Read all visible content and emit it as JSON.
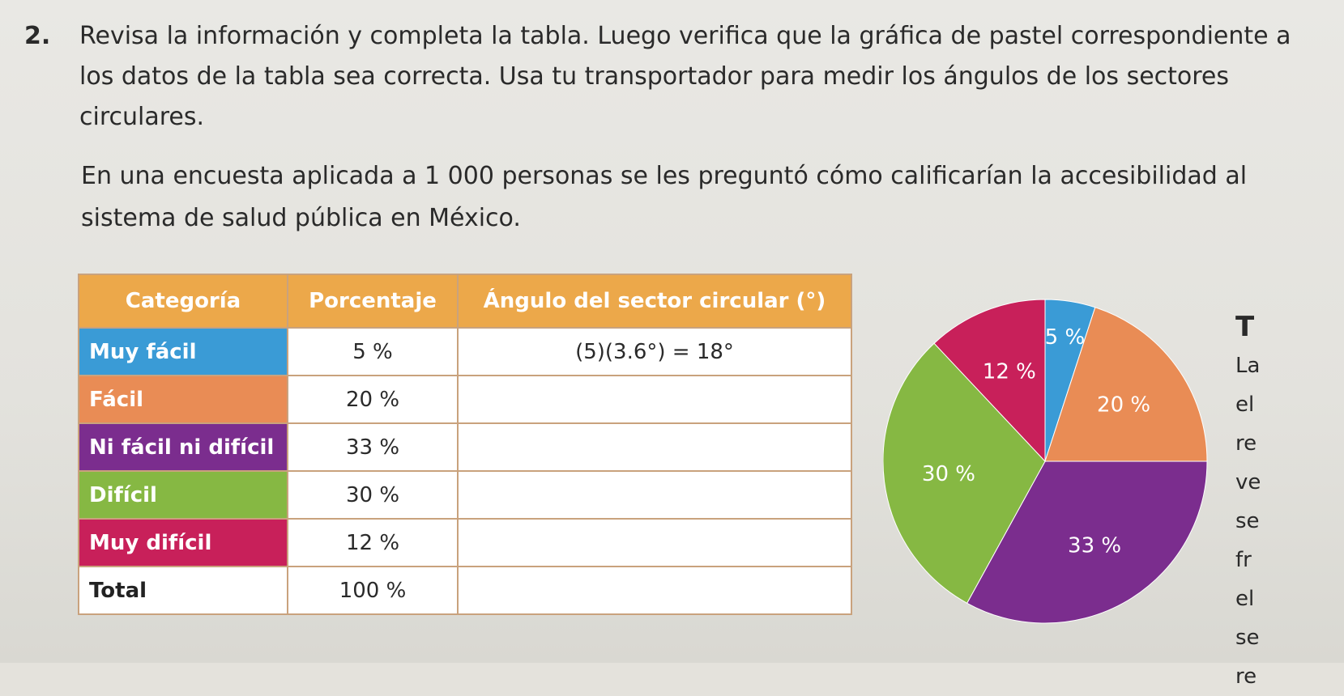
{
  "problem": {
    "number": "2.",
    "text": "Revisa la información y completa la tabla. Luego verifica que la gráfica de pastel correspondiente a los datos de la tabla sea correcta. Usa tu transportador para medir los ángulos de los sectores circulares."
  },
  "intro": "En una encuesta aplicada a 1 000 personas se les preguntó cómo calificarían la accesibilidad al sistema de salud pública en México.",
  "table": {
    "headers": [
      "Categoría",
      "Porcentaje",
      "Ángulo del sector circular (°)"
    ],
    "rows": [
      {
        "category": "Muy fácil",
        "percent": "5 %",
        "angle": "(5)(3.6°) = 18°",
        "color": "#3a9bd6"
      },
      {
        "category": "Fácil",
        "percent": "20 %",
        "angle": "",
        "color": "#e98c55"
      },
      {
        "category": "Ni fácil ni difícil",
        "percent": "33 %",
        "angle": "",
        "color": "#7b2d8e"
      },
      {
        "category": "Difícil",
        "percent": "30 %",
        "angle": "",
        "color": "#86b843"
      },
      {
        "category": "Muy difícil",
        "percent": "12 %",
        "angle": "",
        "color": "#c8205a"
      }
    ],
    "total": {
      "category": "Total",
      "percent": "100 %",
      "angle": ""
    }
  },
  "chart_data": {
    "type": "pie",
    "categories": [
      "Muy fácil",
      "Fácil",
      "Ni fácil ni difícil",
      "Difícil",
      "Muy difícil"
    ],
    "values": [
      5,
      20,
      33,
      30,
      12
    ],
    "labels": [
      "5 %",
      "20 %",
      "33 %",
      "30 %",
      "12 %"
    ],
    "colors": [
      "#3a9bd6",
      "#e98c55",
      "#7b2d8e",
      "#86b843",
      "#c8205a"
    ]
  },
  "side_fragment": {
    "heading": "T",
    "lines": [
      "La",
      "el",
      "re",
      "ve",
      "se",
      "fr",
      "el",
      "se",
      "re"
    ]
  }
}
